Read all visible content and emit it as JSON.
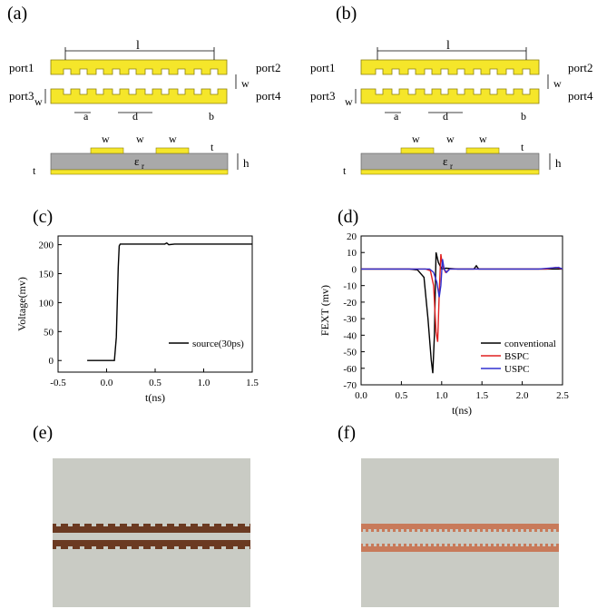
{
  "panels": {
    "a": "(a)",
    "b": "(b)",
    "c": "(c)",
    "d": "(d)",
    "e": "(e)",
    "f": "(f)"
  },
  "diagram_a": {
    "ports": [
      "port1",
      "port2",
      "port3",
      "port4"
    ],
    "dims": {
      "l": "l",
      "w": "w",
      "a": "a",
      "d": "d",
      "b": "b",
      "t": "t",
      "h": "h",
      "er": "ε"
    },
    "er_sub": "r",
    "colors": {
      "trace": "#f5e62a",
      "substrate": "#a9a9a9",
      "ground": "#f5e62a"
    }
  },
  "diagram_b": {
    "ports": [
      "port1",
      "port2",
      "port3",
      "port4"
    ],
    "dims": {
      "l": "l",
      "w": "w",
      "a": "a",
      "d": "d",
      "b": "b",
      "t": "t",
      "h": "h",
      "er": "ε"
    },
    "er_sub": "r"
  },
  "chart_data": [
    {
      "type": "line",
      "panel": "c",
      "xlabel": "t(ns)",
      "ylabel": "Voltage(mv)",
      "xlim": [
        -0.5,
        1.5
      ],
      "ylim": [
        -20,
        215
      ],
      "xticks": [
        "-0.5",
        "0.0",
        "0.5",
        "1.0",
        "1.5"
      ],
      "xtick_vals": [
        -0.5,
        0.0,
        0.5,
        1.0,
        1.5
      ],
      "yticks": [
        "0",
        "50",
        "100",
        "150",
        "200"
      ],
      "ytick_vals": [
        0,
        50,
        100,
        150,
        200
      ],
      "series": [
        {
          "name": "source(30ps)",
          "color": "#000000",
          "x": [
            -0.2,
            0.08,
            0.1,
            0.12,
            0.13,
            0.14,
            0.3,
            0.55,
            0.6,
            0.62,
            0.64,
            0.7,
            1.5
          ],
          "y": [
            0,
            0,
            40,
            160,
            198,
            201,
            201,
            201,
            201,
            203,
            200,
            201,
            201
          ]
        }
      ]
    },
    {
      "type": "line",
      "panel": "d",
      "xlabel": "t(ns)",
      "ylabel": "FEXT (mv)",
      "xlim": [
        0.0,
        2.5
      ],
      "ylim": [
        -70,
        20
      ],
      "xticks": [
        "0.0",
        "0.5",
        "1.0",
        "1.5",
        "2.0",
        "2.5"
      ],
      "xtick_vals": [
        0.0,
        0.5,
        1.0,
        1.5,
        2.0,
        2.5
      ],
      "yticks": [
        "-70",
        "-60",
        "-50",
        "-40",
        "-30",
        "-20",
        "-10",
        "0",
        "10",
        "20"
      ],
      "ytick_vals": [
        -70,
        -60,
        -50,
        -40,
        -30,
        -20,
        -10,
        0,
        10,
        20
      ],
      "series": [
        {
          "name": "conventional",
          "color": "#000000",
          "x": [
            0.0,
            0.6,
            0.7,
            0.78,
            0.83,
            0.87,
            0.89,
            0.91,
            0.93,
            0.96,
            1.0,
            1.05,
            1.2,
            1.4,
            1.43,
            1.46,
            1.7,
            2.0,
            2.4,
            2.5
          ],
          "y": [
            0,
            0,
            -0.5,
            -5,
            -30,
            -55,
            -63,
            -40,
            10,
            4,
            0,
            0.5,
            0,
            0,
            2,
            0,
            0,
            0,
            0,
            0
          ]
        },
        {
          "name": "BSPC",
          "color": "#e02020",
          "x": [
            0.0,
            0.8,
            0.86,
            0.9,
            0.93,
            0.95,
            0.97,
            0.99,
            1.01,
            1.05,
            1.1,
            1.3,
            1.7,
            2.0,
            2.3,
            2.42,
            2.5
          ],
          "y": [
            0,
            0,
            -1,
            -10,
            -38,
            -44,
            -15,
            9,
            2,
            -2,
            0,
            0,
            0,
            0,
            0,
            1,
            0
          ]
        },
        {
          "name": "USPC",
          "color": "#3030d0",
          "x": [
            0.0,
            0.85,
            0.9,
            0.94,
            0.97,
            0.99,
            1.01,
            1.03,
            1.06,
            1.1,
            1.4,
            1.8,
            2.2,
            2.45,
            2.5
          ],
          "y": [
            0,
            0,
            -2,
            -8,
            -17,
            -10,
            6,
            0,
            -2,
            0,
            0,
            0,
            0,
            1,
            0
          ]
        }
      ]
    }
  ]
}
